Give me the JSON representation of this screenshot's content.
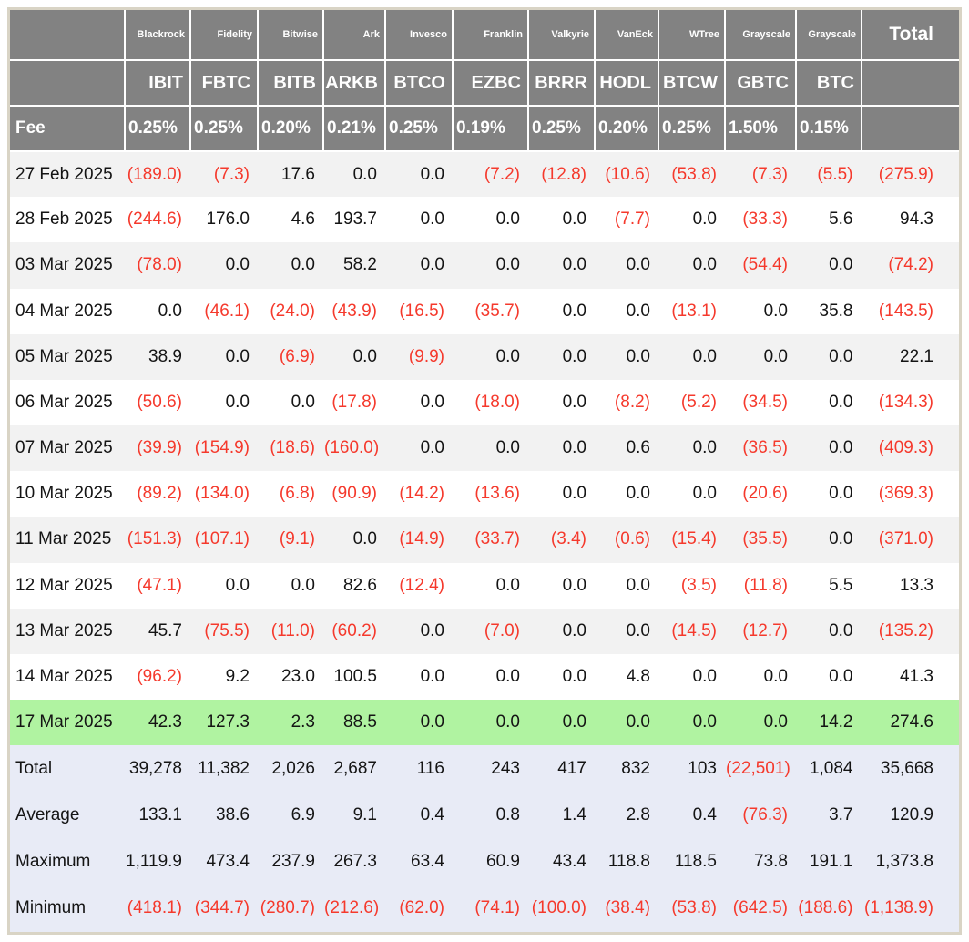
{
  "colors": {
    "header_bg": "#828282",
    "outer_border": "#d9d4c5",
    "stripe": "#f2f2f2",
    "highlight_row": "#b0f3a1",
    "summary_bg": "#e8ebf6",
    "negative": "#f5392c"
  },
  "chart_data": {
    "type": "table",
    "columns": {
      "issuers": [
        "Blackrock",
        "Fidelity",
        "Bitwise",
        "Ark",
        "Invesco",
        "Franklin",
        "Valkyrie",
        "VanEck",
        "WTree",
        "Grayscale",
        "Grayscale"
      ],
      "tickers": [
        "IBIT",
        "FBTC",
        "BITB",
        "ARKB",
        "BTCO",
        "EZBC",
        "BRRR",
        "HODL",
        "BTCW",
        "GBTC",
        "BTC"
      ],
      "fee_row_label": "Fee",
      "fees": [
        "0.25%",
        "0.25%",
        "0.20%",
        "0.21%",
        "0.25%",
        "0.19%",
        "0.25%",
        "0.20%",
        "0.25%",
        "1.50%",
        "0.15%"
      ],
      "total_label": "Total"
    },
    "rows": [
      {
        "date": "27 Feb 2025",
        "values": [
          "(189.0)",
          "(7.3)",
          "17.6",
          "0.0",
          "0.0",
          "(7.2)",
          "(12.8)",
          "(10.6)",
          "(53.8)",
          "(7.3)",
          "(5.5)"
        ],
        "total": "(275.9)",
        "highlight": false
      },
      {
        "date": "28 Feb 2025",
        "values": [
          "(244.6)",
          "176.0",
          "4.6",
          "193.7",
          "0.0",
          "0.0",
          "0.0",
          "(7.7)",
          "0.0",
          "(33.3)",
          "5.6"
        ],
        "total": "94.3",
        "highlight": false
      },
      {
        "date": "03 Mar 2025",
        "values": [
          "(78.0)",
          "0.0",
          "0.0",
          "58.2",
          "0.0",
          "0.0",
          "0.0",
          "0.0",
          "0.0",
          "(54.4)",
          "0.0"
        ],
        "total": "(74.2)",
        "highlight": false
      },
      {
        "date": "04 Mar 2025",
        "values": [
          "0.0",
          "(46.1)",
          "(24.0)",
          "(43.9)",
          "(16.5)",
          "(35.7)",
          "0.0",
          "0.0",
          "(13.1)",
          "0.0",
          "35.8"
        ],
        "total": "(143.5)",
        "highlight": false
      },
      {
        "date": "05 Mar 2025",
        "values": [
          "38.9",
          "0.0",
          "(6.9)",
          "0.0",
          "(9.9)",
          "0.0",
          "0.0",
          "0.0",
          "0.0",
          "0.0",
          "0.0"
        ],
        "total": "22.1",
        "highlight": false
      },
      {
        "date": "06 Mar 2025",
        "values": [
          "(50.6)",
          "0.0",
          "0.0",
          "(17.8)",
          "0.0",
          "(18.0)",
          "0.0",
          "(8.2)",
          "(5.2)",
          "(34.5)",
          "0.0"
        ],
        "total": "(134.3)",
        "highlight": false
      },
      {
        "date": "07 Mar 2025",
        "values": [
          "(39.9)",
          "(154.9)",
          "(18.6)",
          "(160.0)",
          "0.0",
          "0.0",
          "0.0",
          "0.6",
          "0.0",
          "(36.5)",
          "0.0"
        ],
        "total": "(409.3)",
        "highlight": false
      },
      {
        "date": "10 Mar 2025",
        "values": [
          "(89.2)",
          "(134.0)",
          "(6.8)",
          "(90.9)",
          "(14.2)",
          "(13.6)",
          "0.0",
          "0.0",
          "0.0",
          "(20.6)",
          "0.0"
        ],
        "total": "(369.3)",
        "highlight": false
      },
      {
        "date": "11 Mar 2025",
        "values": [
          "(151.3)",
          "(107.1)",
          "(9.1)",
          "0.0",
          "(14.9)",
          "(33.7)",
          "(3.4)",
          "(0.6)",
          "(15.4)",
          "(35.5)",
          "0.0"
        ],
        "total": "(371.0)",
        "highlight": false
      },
      {
        "date": "12 Mar 2025",
        "values": [
          "(47.1)",
          "0.0",
          "0.0",
          "82.6",
          "(12.4)",
          "0.0",
          "0.0",
          "0.0",
          "(3.5)",
          "(11.8)",
          "5.5"
        ],
        "total": "13.3",
        "highlight": false
      },
      {
        "date": "13 Mar 2025",
        "values": [
          "45.7",
          "(75.5)",
          "(11.0)",
          "(60.2)",
          "0.0",
          "(7.0)",
          "0.0",
          "0.0",
          "(14.5)",
          "(12.7)",
          "0.0"
        ],
        "total": "(135.2)",
        "highlight": false
      },
      {
        "date": "14 Mar 2025",
        "values": [
          "(96.2)",
          "9.2",
          "23.0",
          "100.5",
          "0.0",
          "0.0",
          "0.0",
          "4.8",
          "0.0",
          "0.0",
          "0.0"
        ],
        "total": "41.3",
        "highlight": false
      },
      {
        "date": "17 Mar 2025",
        "values": [
          "42.3",
          "127.3",
          "2.3",
          "88.5",
          "0.0",
          "0.0",
          "0.0",
          "0.0",
          "0.0",
          "0.0",
          "14.2"
        ],
        "total": "274.6",
        "highlight": true
      }
    ],
    "summary_rows": [
      {
        "label": "Total",
        "values": [
          "39,278",
          "11,382",
          "2,026",
          "2,687",
          "116",
          "243",
          "417",
          "832",
          "103",
          "(22,501)",
          "1,084"
        ],
        "total": "35,668"
      },
      {
        "label": "Average",
        "values": [
          "133.1",
          "38.6",
          "6.9",
          "9.1",
          "0.4",
          "0.8",
          "1.4",
          "2.8",
          "0.4",
          "(76.3)",
          "3.7"
        ],
        "total": "120.9"
      },
      {
        "label": "Maximum",
        "values": [
          "1,119.9",
          "473.4",
          "237.9",
          "267.3",
          "63.4",
          "60.9",
          "43.4",
          "118.8",
          "118.5",
          "73.8",
          "191.1"
        ],
        "total": "1,373.8"
      },
      {
        "label": "Minimum",
        "values": [
          "(418.1)",
          "(344.7)",
          "(280.7)",
          "(212.6)",
          "(62.0)",
          "(74.1)",
          "(100.0)",
          "(38.4)",
          "(53.8)",
          "(642.5)",
          "(188.6)"
        ],
        "total": "(1,138.9)"
      }
    ]
  }
}
